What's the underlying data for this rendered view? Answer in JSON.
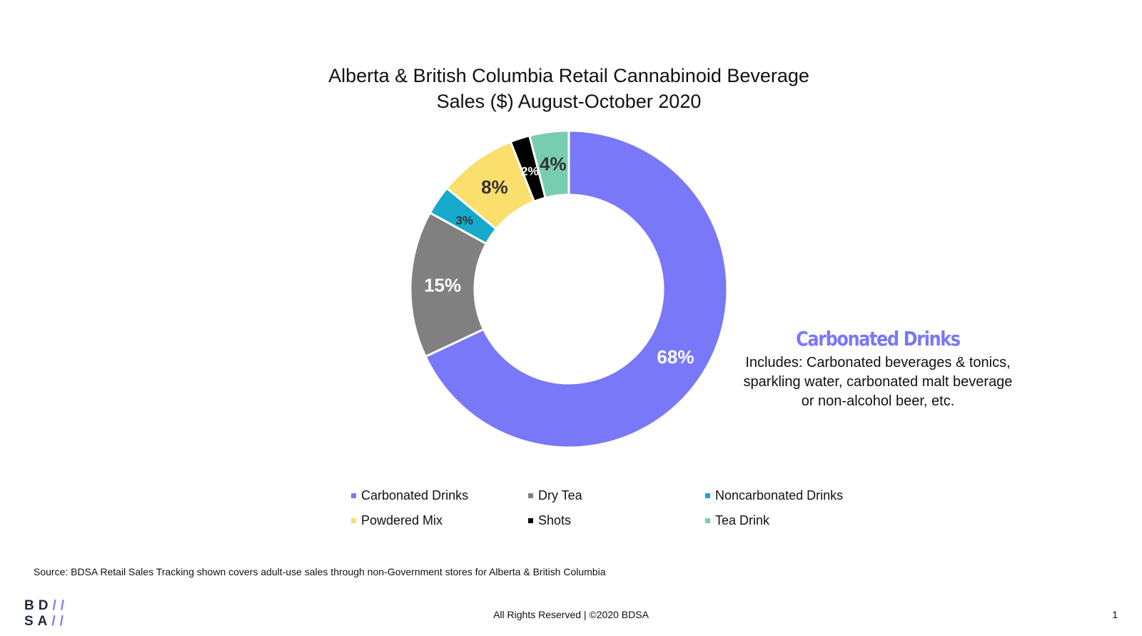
{
  "chart_data": {
    "type": "pie",
    "title_line1": "Alberta & British Columbia Retail Cannabinoid Beverage",
    "title_line2": "Sales ($) August-October 2020",
    "categories": [
      "Carbonated Drinks",
      "Dry Tea",
      "Noncarbonated Drinks",
      "Powdered Mix",
      "Shots",
      "Tea Drink"
    ],
    "values": [
      68,
      15,
      3,
      8,
      2,
      4
    ],
    "labels": [
      "68%",
      "15%",
      "3%",
      "8%",
      "2%",
      "4%"
    ],
    "colors": [
      "#7878F8",
      "#808080",
      "#17A9CC",
      "#FBDF6C",
      "#000000",
      "#78CDB0"
    ],
    "label_colors": [
      "#ffffff",
      "#ffffff",
      "#333333",
      "#333333",
      "#ffffff",
      "#333333"
    ],
    "legend_position": "bottom"
  },
  "callout": {
    "heading": "Carbonated Drinks",
    "body": "Includes: Carbonated beverages & tonics, sparkling water, carbonated malt beverage or non-alcohol beer, etc."
  },
  "source": "Source: BDSA Retail Sales Tracking shown covers adult-use sales through non-Government stores for Alberta & British Columbia",
  "footer": "All Rights Reserved | ©2020 BDSA",
  "page_number": "1",
  "logo": "BDSA"
}
